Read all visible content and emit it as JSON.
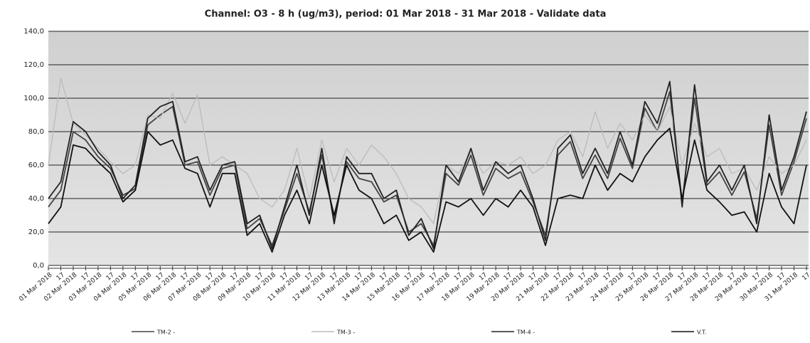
{
  "chart_data": {
    "type": "line",
    "title": "Channel: O3 - 8 h (ug/m3),  period: 01 Mar 2018 - 31 Mar 2018 - Validate data",
    "categories": [
      "01 Mar 2018",
      "17",
      "02 Mar 2018",
      "17",
      "03 Mar 2018",
      "17",
      "04 Mar 2018",
      "17",
      "05 Mar 2018",
      "17",
      "06 Mar 2018",
      "17",
      "07 Mar 2018",
      "17",
      "08 Mar 2018",
      "17",
      "09 Mar 2018",
      "17",
      "10 Mar 2018",
      "17",
      "11 Mar 2018",
      "17",
      "12 Mar 2018",
      "17",
      "13 Mar 2018",
      "17",
      "14 Mar 2018",
      "17",
      "15 Mar 2018",
      "17",
      "16 Mar 2018",
      "17",
      "17 Mar 2018",
      "17",
      "18 Mar 2018",
      "17",
      "19 Mar 2018",
      "17",
      "20 Mar 2018",
      "17",
      "21 Mar 2018",
      "17",
      "22 Mar 2018",
      "17",
      "23 Mar 2018",
      "17",
      "24 Mar 2018",
      "17",
      "25 Mar 2018",
      "17",
      "26 Mar 2018",
      "17",
      "27 Mar 2018",
      "17",
      "28 Mar 2018",
      "17",
      "29 Mar 2018",
      "17",
      "30 Mar 2018",
      "17",
      "31 Mar 2018",
      "17"
    ],
    "series": [
      {
        "name": "TM-2 -",
        "color": "#444444",
        "values": [
          35,
          45,
          80,
          75,
          65,
          58,
          42,
          46,
          84,
          90,
          95,
          60,
          62,
          42,
          58,
          60,
          22,
          28,
          12,
          33,
          55,
          32,
          66,
          28,
          62,
          52,
          50,
          38,
          42,
          20,
          25,
          12,
          55,
          48,
          66,
          42,
          58,
          52,
          56,
          38,
          18,
          66,
          74,
          52,
          66,
          52,
          76,
          58,
          94,
          80,
          104,
          38,
          100,
          48,
          56,
          42,
          56,
          28,
          84,
          42,
          62,
          88
        ]
      },
      {
        "name": "TM-3 -",
        "color": "#bbbbbb",
        "values": [
          60,
          112,
          85,
          78,
          70,
          62,
          55,
          60,
          90,
          88,
          103,
          85,
          102,
          60,
          65,
          60,
          55,
          40,
          35,
          45,
          70,
          40,
          75,
          50,
          70,
          60,
          72,
          65,
          55,
          40,
          35,
          25,
          60,
          55,
          68,
          55,
          62,
          60,
          65,
          55,
          60,
          75,
          80,
          65,
          92,
          70,
          85,
          75,
          90,
          80,
          95,
          60,
          85,
          65,
          70,
          55,
          58,
          45,
          65,
          55,
          60,
          75
        ]
      },
      {
        "name": "TM-4 -",
        "color": "#222222",
        "values": [
          40,
          50,
          86,
          80,
          68,
          60,
          40,
          48,
          88,
          95,
          98,
          62,
          65,
          45,
          60,
          62,
          25,
          30,
          10,
          35,
          60,
          30,
          70,
          25,
          65,
          55,
          55,
          40,
          45,
          18,
          28,
          10,
          60,
          50,
          70,
          45,
          62,
          55,
          60,
          40,
          15,
          70,
          78,
          55,
          70,
          55,
          80,
          60,
          98,
          85,
          110,
          35,
          108,
          50,
          60,
          45,
          60,
          25,
          90,
          45,
          65,
          92
        ]
      },
      {
        "name": "V.T.",
        "color": "#111111",
        "values": [
          25,
          35,
          72,
          70,
          62,
          55,
          38,
          45,
          80,
          72,
          75,
          58,
          55,
          35,
          55,
          55,
          18,
          25,
          8,
          30,
          45,
          25,
          60,
          30,
          60,
          45,
          40,
          25,
          30,
          15,
          20,
          8,
          38,
          35,
          40,
          30,
          40,
          35,
          45,
          35,
          12,
          40,
          42,
          40,
          60,
          45,
          55,
          50,
          65,
          75,
          82,
          40,
          75,
          45,
          38,
          30,
          32,
          20,
          55,
          35,
          25,
          60
        ]
      }
    ],
    "ylim": [
      0,
      140
    ],
    "yticks": [
      {
        "value": 0,
        "label": "0,0"
      },
      {
        "value": 20,
        "label": "20,0"
      },
      {
        "value": 40,
        "label": "40,0"
      },
      {
        "value": 60,
        "label": "60,0"
      },
      {
        "value": 80,
        "label": "80,0"
      },
      {
        "value": 100,
        "label": "100,0"
      },
      {
        "value": 120,
        "label": "120,0"
      },
      {
        "value": 140,
        "label": "140,0"
      }
    ],
    "grid": true
  }
}
